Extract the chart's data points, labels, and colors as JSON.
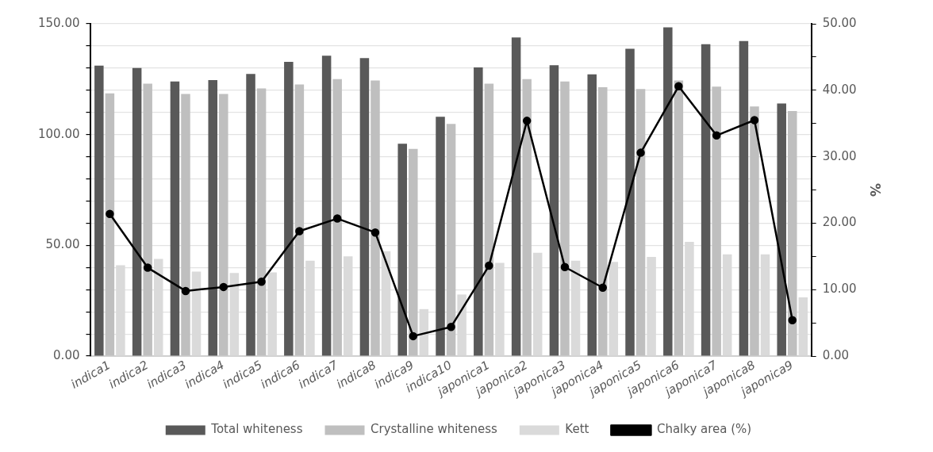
{
  "chart_data": {
    "type": "bar",
    "categories": [
      "indica1",
      "indica2",
      "indica3",
      "indica4",
      "indica5",
      "indica6",
      "indica7",
      "indica8",
      "indica9",
      "indica10",
      "japonica1",
      "japonica2",
      "japonica3",
      "japonica4",
      "japonica5",
      "japonica6",
      "japonica7",
      "japonica8",
      "japonica9"
    ],
    "series": [
      {
        "name": "Total whiteness",
        "color": "#595959",
        "values": [
          131.1,
          130.0,
          124.0,
          124.6,
          127.4,
          132.8,
          135.6,
          134.5,
          95.9,
          108.0,
          130.3,
          143.8,
          131.3,
          127.2,
          138.7,
          148.4,
          140.8,
          142.2,
          114.0
        ]
      },
      {
        "name": "Crystalline whiteness",
        "color": "#bfbfbf",
        "values": [
          118.6,
          123.0,
          118.3,
          118.3,
          120.8,
          122.6,
          125.0,
          124.4,
          93.5,
          104.8,
          123.0,
          125.0,
          124.0,
          121.4,
          120.6,
          124.4,
          121.6,
          112.7,
          110.6
        ]
      },
      {
        "name": "Kett",
        "color": "#dadada",
        "values": [
          41.0,
          43.9,
          38.1,
          37.5,
          37.8,
          43.1,
          45.0,
          47.4,
          21.2,
          27.8,
          42.1,
          46.6,
          43.1,
          42.5,
          44.8,
          51.6,
          45.9,
          45.9,
          26.5
        ]
      },
      {
        "name": "Chalky area (%)",
        "type": "line",
        "axis": "y2",
        "color": "#000000",
        "values": [
          21.4,
          13.3,
          9.8,
          10.4,
          11.2,
          18.8,
          20.7,
          18.6,
          3.0,
          4.4,
          13.6,
          35.4,
          13.4,
          10.3,
          30.6,
          40.6,
          33.2,
          35.5,
          5.4
        ]
      }
    ],
    "y2label": "%",
    "ylim": [
      0,
      150
    ],
    "yticks": [
      {
        "value": 0,
        "label": "0.00"
      },
      {
        "value": 10,
        "label": null
      },
      {
        "value": 20,
        "label": null
      },
      {
        "value": 30,
        "label": null
      },
      {
        "value": 40,
        "label": null
      },
      {
        "value": 50,
        "label": "50.00"
      },
      {
        "value": 60,
        "label": null
      },
      {
        "value": 70,
        "label": null
      },
      {
        "value": 80,
        "label": null
      },
      {
        "value": 90,
        "label": null
      },
      {
        "value": 100,
        "label": "100.00"
      },
      {
        "value": 110,
        "label": null
      },
      {
        "value": 120,
        "label": null
      },
      {
        "value": 130,
        "label": null
      },
      {
        "value": 140,
        "label": null
      },
      {
        "value": 150,
        "label": "150.00"
      }
    ],
    "y2lim": [
      0,
      50
    ],
    "y2ticks": [
      {
        "value": 0,
        "label": "0.00"
      },
      {
        "value": 5,
        "label": null
      },
      {
        "value": 10,
        "label": "10.00"
      },
      {
        "value": 15,
        "label": null
      },
      {
        "value": 20,
        "label": "20.00"
      },
      {
        "value": 25,
        "label": null
      },
      {
        "value": 30,
        "label": "30.00"
      },
      {
        "value": 35,
        "label": null
      },
      {
        "value": 40,
        "label": "40.00"
      },
      {
        "value": 45,
        "label": null
      },
      {
        "value": 50,
        "label": "50.00"
      }
    ],
    "grid": "y",
    "legend": "bottom",
    "marker": "circle",
    "line_style": "solid"
  }
}
